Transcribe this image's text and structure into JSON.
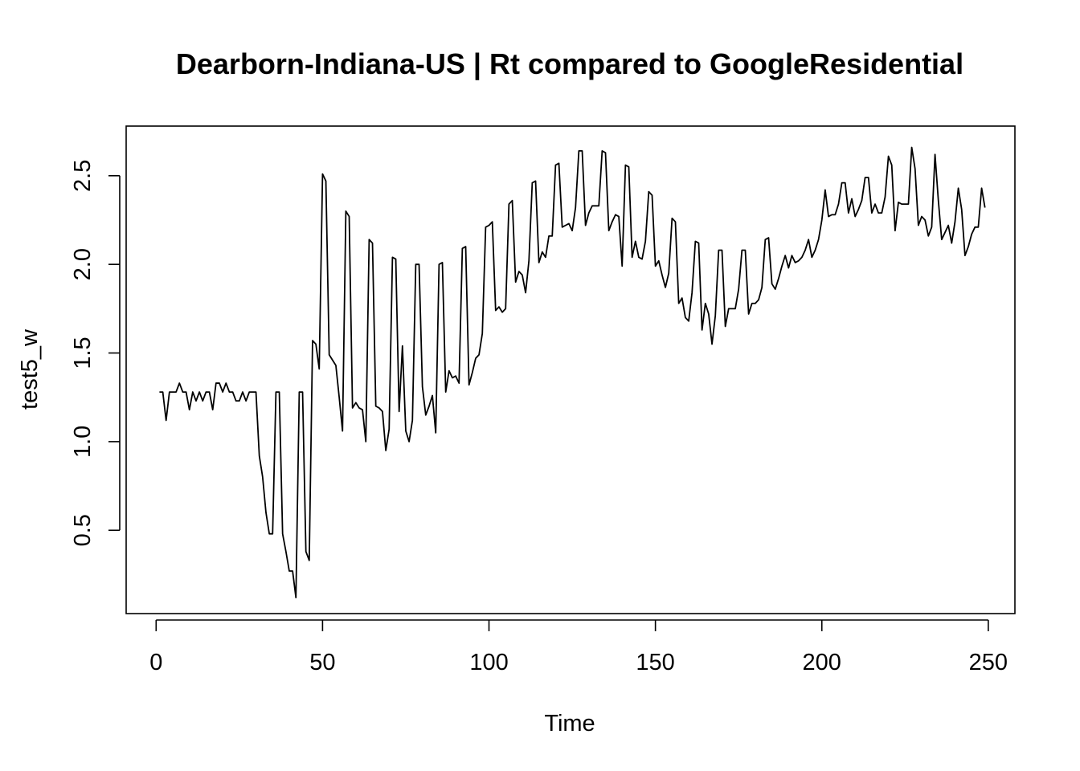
{
  "chart_data": {
    "type": "line",
    "title": "Dearborn-Indiana-US | Rt compared to GoogleResidential",
    "xlabel": "Time",
    "ylabel": "test5_w",
    "xlim": [
      -9,
      258
    ],
    "ylim": [
      0.03,
      2.78
    ],
    "x_ticks": [
      0,
      50,
      100,
      150,
      200,
      250
    ],
    "y_ticks": [
      0.5,
      1.0,
      1.5,
      2.0,
      2.5
    ],
    "x_tick_labels": [
      "0",
      "50",
      "100",
      "150",
      "200",
      "250"
    ],
    "y_tick_labels": [
      "0.5",
      "1.0",
      "1.5",
      "2.0",
      "2.5"
    ],
    "grid": false,
    "color": "#000000",
    "series": [
      {
        "x_start": 1,
        "values": [
          1.28,
          1.28,
          1.12,
          1.28,
          1.28,
          1.28,
          1.33,
          1.28,
          1.28,
          1.18,
          1.28,
          1.23,
          1.28,
          1.23,
          1.28,
          1.28,
          1.18,
          1.33,
          1.33,
          1.28,
          1.33,
          1.28,
          1.28,
          1.23,
          1.23,
          1.28,
          1.23,
          1.28,
          1.28,
          1.28,
          0.92,
          0.8,
          0.6,
          0.48,
          0.48,
          1.28,
          1.28,
          0.48,
          0.38,
          0.27,
          0.27,
          0.12,
          1.28,
          1.28,
          0.38,
          0.33,
          1.57,
          1.55,
          1.41,
          2.51,
          2.47,
          1.49,
          1.46,
          1.43,
          1.25,
          1.06,
          2.3,
          2.27,
          1.19,
          1.22,
          1.19,
          1.18,
          1.0,
          2.14,
          2.12,
          1.2,
          1.19,
          1.17,
          0.95,
          1.07,
          2.04,
          2.03,
          1.17,
          1.54,
          1.06,
          1.0,
          1.12,
          2.0,
          2.0,
          1.31,
          1.15,
          1.2,
          1.26,
          1.05,
          2.0,
          2.01,
          1.28,
          1.4,
          1.36,
          1.37,
          1.33,
          2.09,
          2.1,
          1.32,
          1.39,
          1.47,
          1.49,
          1.61,
          2.21,
          2.22,
          2.24,
          1.74,
          1.76,
          1.73,
          1.75,
          2.34,
          2.36,
          1.9,
          1.96,
          1.94,
          1.84,
          2.02,
          2.46,
          2.47,
          2.01,
          2.07,
          2.04,
          2.16,
          2.16,
          2.56,
          2.57,
          2.21,
          2.22,
          2.23,
          2.19,
          2.32,
          2.64,
          2.64,
          2.22,
          2.29,
          2.33,
          2.33,
          2.33,
          2.64,
          2.63,
          2.19,
          2.24,
          2.28,
          2.27,
          1.99,
          2.56,
          2.55,
          2.04,
          2.13,
          2.04,
          2.03,
          2.13,
          2.41,
          2.39,
          1.99,
          2.02,
          1.94,
          1.87,
          1.95,
          2.26,
          2.24,
          1.78,
          1.81,
          1.7,
          1.68,
          1.84,
          2.13,
          2.12,
          1.63,
          1.78,
          1.72,
          1.55,
          1.71,
          2.08,
          2.08,
          1.65,
          1.75,
          1.75,
          1.75,
          1.86,
          2.08,
          2.08,
          1.72,
          1.78,
          1.78,
          1.8,
          1.87,
          2.14,
          2.15,
          1.89,
          1.86,
          1.92,
          1.99,
          2.05,
          1.98,
          2.05,
          2.01,
          2.02,
          2.04,
          2.08,
          2.14,
          2.04,
          2.08,
          2.14,
          2.25,
          2.42,
          2.27,
          2.28,
          2.28,
          2.34,
          2.46,
          2.46,
          2.29,
          2.37,
          2.27,
          2.31,
          2.36,
          2.49,
          2.49,
          2.29,
          2.34,
          2.29,
          2.29,
          2.38,
          2.61,
          2.56,
          2.19,
          2.35,
          2.34,
          2.34,
          2.34,
          2.66,
          2.54,
          2.22,
          2.27,
          2.25,
          2.16,
          2.21,
          2.62,
          2.36,
          2.14,
          2.18,
          2.22,
          2.12,
          2.24,
          2.43,
          2.31,
          2.05,
          2.1,
          2.17,
          2.21,
          2.21,
          2.43,
          2.32
        ]
      }
    ]
  }
}
